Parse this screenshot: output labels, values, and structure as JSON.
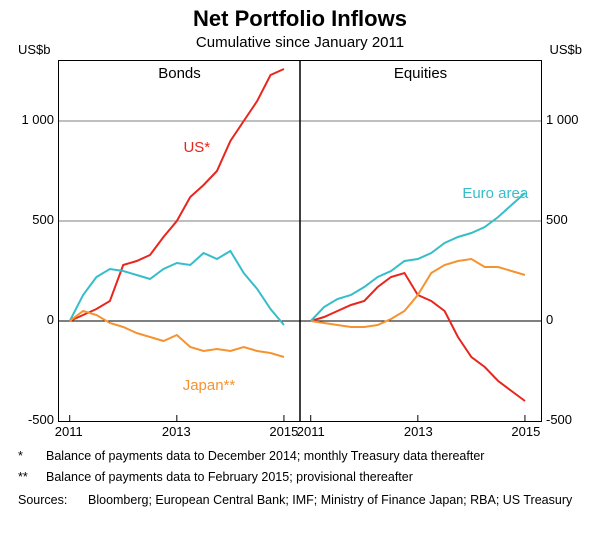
{
  "title": "Net Portfolio Inflows",
  "subtitle": "Cumulative since January 2011",
  "y_axis_unit": "US$b",
  "ylim": [
    -500,
    1300
  ],
  "yticks": [
    -500,
    0,
    500,
    1000
  ],
  "x_range": [
    2010.8,
    2015.3
  ],
  "xticks": [
    2011,
    2013,
    2015
  ],
  "panels": {
    "left": {
      "label": "Bonds",
      "series_labels": {
        "us": "US*",
        "japan": "Japan**"
      }
    },
    "right": {
      "label": "Equities",
      "series_labels": {
        "euro": "Euro area"
      }
    }
  },
  "colors": {
    "us": "#e8261d",
    "euro": "#36bdc9",
    "japan": "#f59331",
    "grid": "#000000",
    "background": "#ffffff"
  },
  "line_width": 2,
  "series": {
    "bonds": {
      "us": {
        "x": [
          2011.0,
          2011.25,
          2011.5,
          2011.75,
          2012.0,
          2012.25,
          2012.5,
          2012.75,
          2013.0,
          2013.25,
          2013.5,
          2013.75,
          2014.0,
          2014.25,
          2014.5,
          2014.75,
          2015.0
        ],
        "y": [
          0,
          30,
          60,
          100,
          280,
          300,
          330,
          420,
          500,
          620,
          680,
          750,
          900,
          1000,
          1100,
          1230,
          1260
        ]
      },
      "euro": {
        "x": [
          2011.0,
          2011.25,
          2011.5,
          2011.75,
          2012.0,
          2012.25,
          2012.5,
          2012.75,
          2013.0,
          2013.25,
          2013.5,
          2013.75,
          2014.0,
          2014.25,
          2014.5,
          2014.75,
          2015.0
        ],
        "y": [
          0,
          130,
          220,
          260,
          250,
          230,
          210,
          260,
          290,
          280,
          340,
          310,
          350,
          240,
          160,
          60,
          -20
        ]
      },
      "japan": {
        "x": [
          2011.0,
          2011.25,
          2011.5,
          2011.75,
          2012.0,
          2012.25,
          2012.5,
          2012.75,
          2013.0,
          2013.25,
          2013.5,
          2013.75,
          2014.0,
          2014.25,
          2014.5,
          2014.75,
          2015.0
        ],
        "y": [
          0,
          50,
          30,
          -10,
          -30,
          -60,
          -80,
          -100,
          -70,
          -130,
          -150,
          -140,
          -150,
          -130,
          -150,
          -160,
          -180
        ]
      }
    },
    "equities": {
      "us": {
        "x": [
          2011.0,
          2011.25,
          2011.5,
          2011.75,
          2012.0,
          2012.25,
          2012.5,
          2012.75,
          2013.0,
          2013.25,
          2013.5,
          2013.75,
          2014.0,
          2014.25,
          2014.5,
          2014.75,
          2015.0
        ],
        "y": [
          0,
          20,
          50,
          80,
          100,
          170,
          220,
          240,
          130,
          100,
          50,
          -80,
          -180,
          -230,
          -300,
          -350,
          -400
        ]
      },
      "euro": {
        "x": [
          2011.0,
          2011.25,
          2011.5,
          2011.75,
          2012.0,
          2012.25,
          2012.5,
          2012.75,
          2013.0,
          2013.25,
          2013.5,
          2013.75,
          2014.0,
          2014.25,
          2014.5,
          2014.75,
          2015.0
        ],
        "y": [
          0,
          70,
          110,
          130,
          170,
          220,
          250,
          300,
          310,
          340,
          390,
          420,
          440,
          470,
          520,
          580,
          640
        ]
      },
      "japan": {
        "x": [
          2011.0,
          2011.25,
          2011.5,
          2011.75,
          2012.0,
          2012.25,
          2012.5,
          2012.75,
          2013.0,
          2013.25,
          2013.5,
          2013.75,
          2014.0,
          2014.25,
          2014.5,
          2014.75,
          2015.0
        ],
        "y": [
          0,
          -10,
          -20,
          -30,
          -30,
          -20,
          10,
          50,
          130,
          240,
          280,
          300,
          310,
          270,
          270,
          250,
          230
        ]
      }
    }
  },
  "footnotes": {
    "f1_mark": "*",
    "f1_text": "Balance of payments data to December 2014; monthly Treasury data thereafter",
    "f2_mark": "**",
    "f2_text": "Balance of payments data to February 2015; provisional thereafter"
  },
  "sources_label": "Sources:",
  "sources_text": "Bloomberg; European Central Bank; IMF; Ministry of Finance Japan; RBA; US Treasury"
}
